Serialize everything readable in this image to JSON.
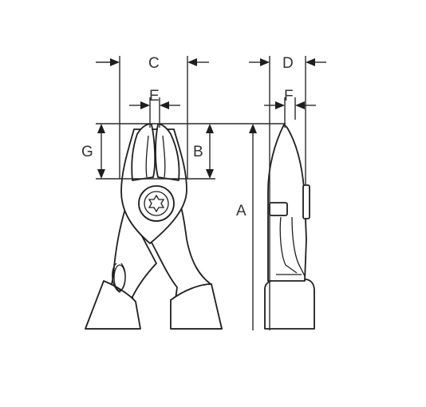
{
  "diagram": {
    "labels": {
      "a": "A",
      "b": "B",
      "c": "C",
      "d": "D",
      "e": "E",
      "f": "F",
      "g": "G"
    },
    "colors": {
      "line": "#1e1e1e",
      "text": "#333333",
      "background": "#ffffff"
    }
  }
}
